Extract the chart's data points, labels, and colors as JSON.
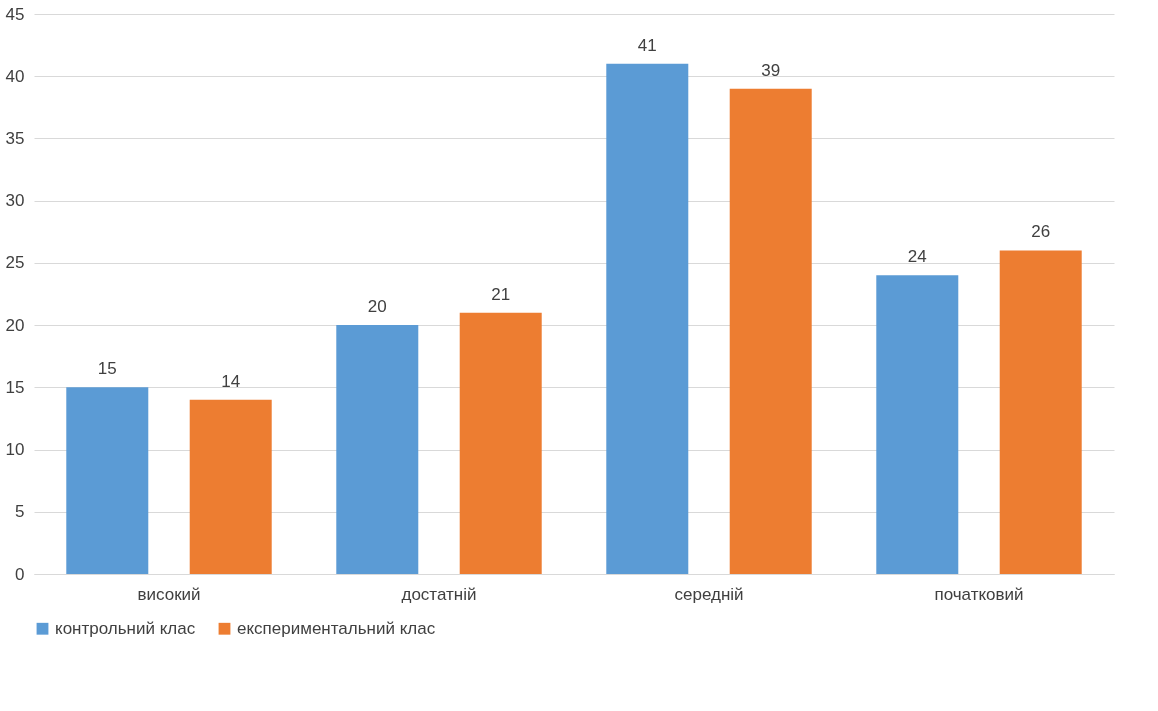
{
  "chart_data": {
    "type": "bar",
    "categories": [
      "високий",
      "достатній",
      "середній",
      "початковий"
    ],
    "series": [
      {
        "name": "контрольний клас",
        "color": "#5b9bd5",
        "values": [
          15,
          20,
          41,
          24
        ]
      },
      {
        "name": "експериментальний клас",
        "color": "#ed7d31",
        "values": [
          14,
          21,
          39,
          26
        ]
      }
    ],
    "ylim": [
      0,
      45
    ],
    "yticks": [
      0,
      5,
      10,
      15,
      20,
      25,
      30,
      35,
      40,
      45
    ],
    "grid": "y",
    "legend": "bottom",
    "data_labels": true
  }
}
